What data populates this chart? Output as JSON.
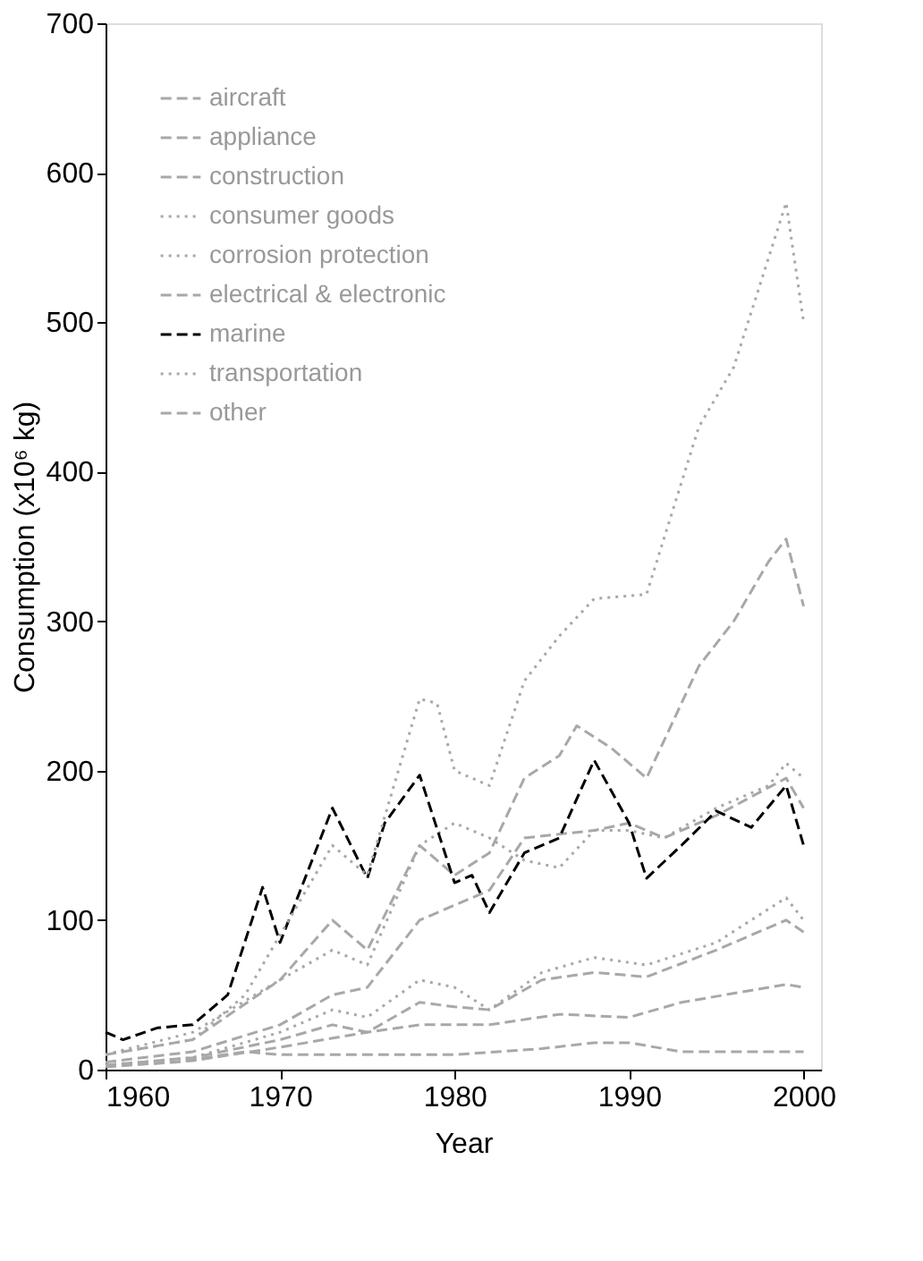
{
  "chart_data": {
    "type": "line",
    "xlabel": "Year",
    "ylabel": "Consumption (x10⁶ kg)",
    "xlim": [
      1960,
      2001
    ],
    "xticks": [
      1960,
      1970,
      1980,
      1990,
      2000
    ],
    "ylim": [
      0,
      700
    ],
    "yticks": [
      0,
      100,
      200,
      300,
      400,
      500,
      600,
      700
    ],
    "grid": false,
    "legend": "top left",
    "marker": "none",
    "series": [
      {
        "name": "aircraft",
        "color": "#a8a8a8",
        "line_style": "dashed",
        "x": [
          1960,
          1964,
          1968,
          1970,
          1975,
          1980,
          1985,
          1988,
          1990,
          1993,
          1996,
          2000
        ],
        "values": [
          2,
          5,
          12,
          10,
          10,
          10,
          14,
          18,
          18,
          12,
          12,
          12
        ]
      },
      {
        "name": "appliance",
        "color": "#a8a8a8",
        "line_style": "dashed",
        "x": [
          1960,
          1965,
          1970,
          1973,
          1975,
          1978,
          1980,
          1982,
          1985,
          1988,
          1991,
          1995,
          1999,
          2000
        ],
        "values": [
          3,
          8,
          20,
          30,
          25,
          45,
          42,
          40,
          60,
          65,
          62,
          80,
          100,
          92
        ]
      },
      {
        "name": "construction",
        "color": "#a8a8a8",
        "line_style": "dashed",
        "x": [
          1960,
          1965,
          1970,
          1973,
          1975,
          1978,
          1980,
          1982,
          1984,
          1988,
          1990,
          1992,
          1995,
          1999,
          2000
        ],
        "values": [
          5,
          12,
          30,
          50,
          55,
          100,
          110,
          120,
          155,
          160,
          165,
          155,
          170,
          195,
          175
        ]
      },
      {
        "name": "consumer goods",
        "color": "#a8a8a8",
        "line_style": "dotted",
        "x": [
          1960,
          1965,
          1970,
          1973,
          1975,
          1978,
          1980,
          1982,
          1985,
          1988,
          1991,
          1995,
          1999,
          2000
        ],
        "values": [
          3,
          8,
          25,
          40,
          35,
          60,
          55,
          40,
          65,
          75,
          70,
          85,
          115,
          100
        ]
      },
      {
        "name": "corrosion protection",
        "color": "#a8a8a8",
        "line_style": "dotted",
        "x": [
          1960,
          1965,
          1970,
          1973,
          1975,
          1978,
          1980,
          1982,
          1984,
          1986,
          1988,
          1990,
          1992,
          1995,
          1998,
          1999,
          2000
        ],
        "values": [
          10,
          25,
          60,
          80,
          70,
          150,
          165,
          155,
          140,
          135,
          160,
          160,
          155,
          175,
          190,
          205,
          195
        ]
      },
      {
        "name": "electrical & electronic",
        "color": "#a8a8a8",
        "line_style": "dashed",
        "x": [
          1960,
          1965,
          1970,
          1973,
          1975,
          1978,
          1980,
          1982,
          1984,
          1986,
          1987,
          1989,
          1991,
          1994,
          1996,
          1998,
          1999,
          2000
        ],
        "values": [
          10,
          20,
          60,
          100,
          80,
          150,
          130,
          145,
          195,
          210,
          230,
          215,
          195,
          270,
          300,
          340,
          355,
          310
        ]
      },
      {
        "name": "marine",
        "color": "#000000",
        "line_style": "dashed",
        "x": [
          1960,
          1961,
          1963,
          1965,
          1967,
          1969,
          1970,
          1973,
          1975,
          1976,
          1978,
          1980,
          1981,
          1982,
          1984,
          1986,
          1988,
          1990,
          1991,
          1993,
          1995,
          1997,
          1999,
          2000
        ],
        "values": [
          25,
          20,
          28,
          30,
          50,
          122,
          85,
          175,
          128,
          165,
          197,
          125,
          130,
          105,
          145,
          155,
          207,
          165,
          128,
          150,
          173,
          162,
          190,
          150
        ]
      },
      {
        "name": "transportation",
        "color": "#a8a8a8",
        "line_style": "dotted",
        "x": [
          1960,
          1965,
          1968,
          1970,
          1973,
          1975,
          1978,
          1979,
          1980,
          1982,
          1984,
          1986,
          1988,
          1991,
          1994,
          1996,
          1999,
          2000
        ],
        "values": [
          10,
          20,
          50,
          90,
          150,
          130,
          248,
          245,
          200,
          190,
          260,
          290,
          315,
          318,
          430,
          470,
          580,
          500
        ]
      },
      {
        "name": "other",
        "color": "#a8a8a8",
        "line_style": "dashed",
        "x": [
          1960,
          1965,
          1970,
          1975,
          1978,
          1982,
          1986,
          1990,
          1993,
          1999,
          2000
        ],
        "values": [
          2,
          6,
          15,
          25,
          30,
          30,
          37,
          35,
          45,
          57,
          55
        ]
      }
    ]
  }
}
